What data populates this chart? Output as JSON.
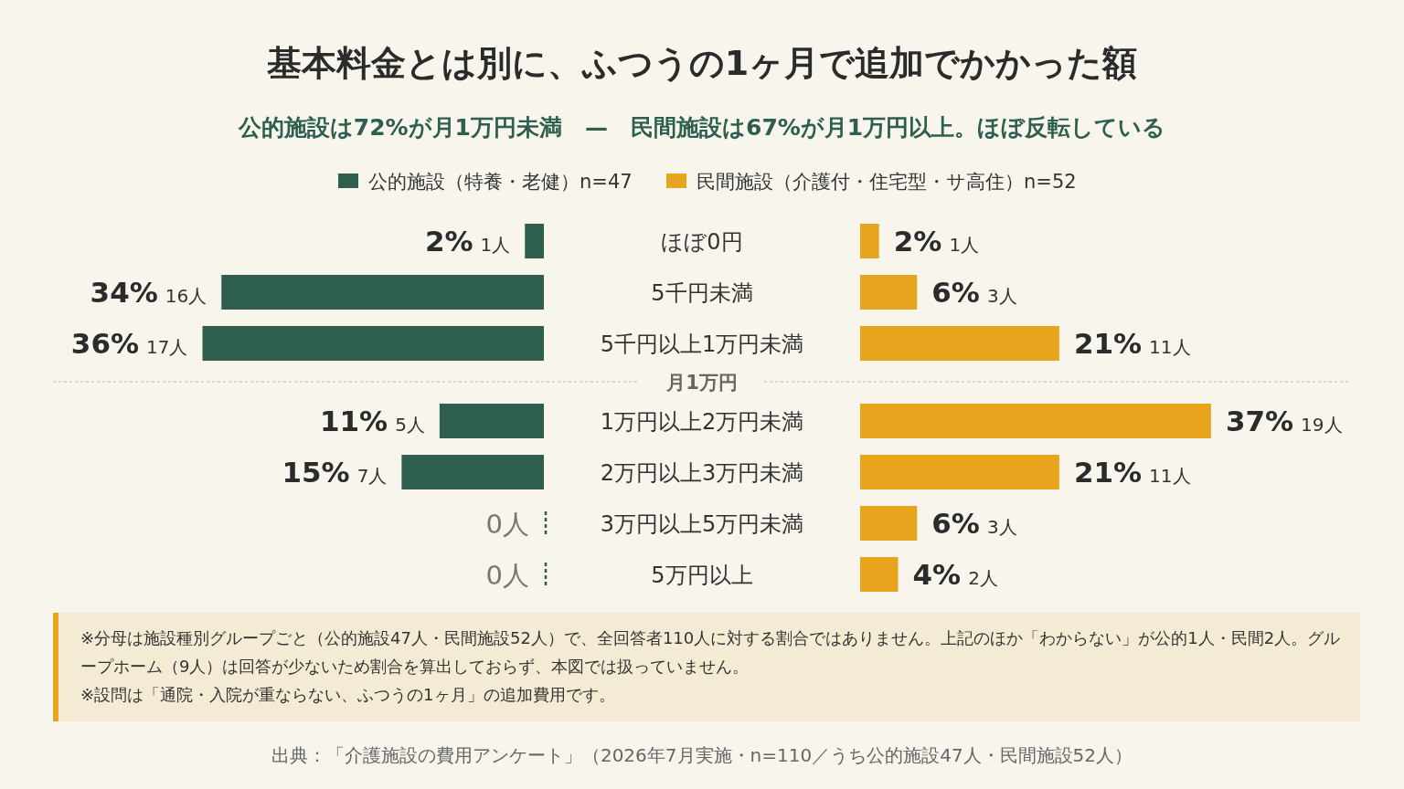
{
  "chart_data": [
    {
      "type": "bar",
      "orientation": "horizontal",
      "title": "基本料金とは別に、ふつうの1ヶ月で追加でかかった額",
      "subtitle": "公的施設は72%が月1万円未満　—　民間施設は67%が月1万円以上。ほぼ反転している",
      "categories": [
        "ほぼ0円",
        "5千円未満",
        "5千円以上1万円未満",
        "1万円以上2万円未満",
        "2万円以上3万円未満",
        "3万円以上5万円未満",
        "5万円以上"
      ],
      "tick_labels": false,
      "legend": "top",
      "series": [
        {
          "name": "公的施設（特養・老健）n=47",
          "color": "#2d5e4e",
          "values": [
            2,
            34,
            36,
            11,
            15,
            0,
            0
          ],
          "value_labels": [
            "2% 1人",
            "34% 16人",
            "36% 17人",
            "11% 5人",
            "15% 7人",
            "0人",
            "0人"
          ]
        }
      ]
    },
    {
      "type": "bar",
      "orientation": "horizontal",
      "categories": [
        "ほぼ0円",
        "5千円未満",
        "5千円以上1万円未満",
        "1万円以上2万円未満",
        "2万円以上3万円未満",
        "3万円以上5万円未満",
        "5万円以上"
      ],
      "tick_labels": "y",
      "legend": "top",
      "series": [
        {
          "name": "民間施設（介護付・住宅型・サ高住）n=52",
          "color": "#e8a41c",
          "values": [
            2,
            6,
            21,
            37,
            21,
            6,
            4
          ],
          "value_labels": [
            "2% 1人",
            "6% 3人",
            "21% 11人",
            "37% 19人",
            "21% 11人",
            "6% 3人",
            "4% 2人"
          ]
        }
      ],
      "annotations": [
        "月1万円",
        "※分母は施設種別グループごと（公的施設47人・民間施設52人）で、全回答者110人に対する割合ではありません。上記のほか「わからない」が公的1人・民間2人。グループホーム（9人）は回答が少ないため割合を算出しておらず、本図では扱っていません。",
        "※設問は「通院・入院が重ならない、ふつうの1ヶ月」の追加費用です。",
        "出典：「介護施設の費用アンケート」（2026年7月実施・n=110／うち公的施設47人・民間施設52人）"
      ]
    }
  ]
}
